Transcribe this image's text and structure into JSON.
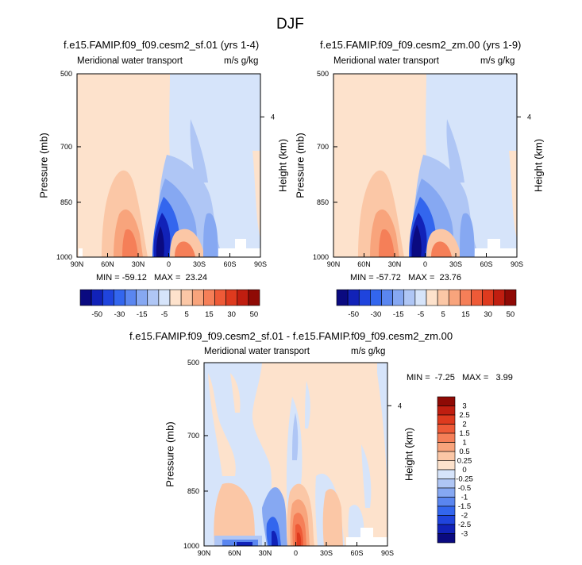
{
  "suptitle": "DJF",
  "panels": [
    {
      "title": "f.e15.FAMIP.f09_f09.cesm2_sf.01 (yrs 1-4)",
      "left_label": "Meridional water transport",
      "right_label": "m/s g/kg",
      "ylabel": "Pressure (mb)",
      "ylabel2": "Height (km)",
      "yticks": [
        "500",
        "700",
        "850",
        "1000"
      ],
      "height_tick": "4",
      "xticks": [
        "90N",
        "60N",
        "30N",
        "0",
        "30S",
        "60S",
        "90S"
      ],
      "stats": "MIN = -59.12   MAX =  23.24"
    },
    {
      "title": "f.e15.FAMIP.f09_f09.cesm2_zm.00 (yrs 1-9)",
      "left_label": "Meridional water transport",
      "right_label": "m/s g/kg",
      "ylabel": "Pressure (mb)",
      "ylabel2": "Height (km)",
      "yticks": [
        "500",
        "700",
        "850",
        "1000"
      ],
      "height_tick": "4",
      "xticks": [
        "90N",
        "60N",
        "30N",
        "0",
        "30S",
        "60S",
        "90S"
      ],
      "stats": "MIN = -57.72   MAX =  23.76"
    },
    {
      "title": "f.e15.FAMIP.f09_f09.cesm2_sf.01 - f.e15.FAMIP.f09_f09.cesm2_zm.00",
      "left_label": "Meridional water transport",
      "right_label": "m/s g/kg",
      "ylabel": "Pressure (mb)",
      "ylabel2": "Height (km)",
      "yticks": [
        "500",
        "700",
        "850",
        "1000"
      ],
      "height_tick": "4",
      "xticks": [
        "90N",
        "60N",
        "30N",
        "0",
        "30S",
        "60S",
        "90S"
      ],
      "stats": "MIN =  -7.25   MAX =   3.99"
    }
  ],
  "colorbar_top": {
    "labels": [
      "-50",
      "-30",
      "-15",
      "-5",
      "5",
      "15",
      "30",
      "50"
    ],
    "colors": [
      "#0a0a80",
      "#1122b8",
      "#1f44dd",
      "#3366ee",
      "#5a86f0",
      "#86a8f2",
      "#afc6f5",
      "#d6e4fa",
      "#fde2cc",
      "#fbc7a6",
      "#f8a47c",
      "#f57f58",
      "#ee5a37",
      "#de3a1e",
      "#c01e10",
      "#8f0a05"
    ]
  },
  "colorbar_diff": {
    "labels": [
      "3",
      "2.5",
      "2",
      "1.5",
      "1",
      "0.5",
      "0.25",
      "0",
      "-0.25",
      "-0.5",
      "-1",
      "-1.5",
      "-2",
      "-2.5",
      "-3"
    ],
    "colors": [
      "#8f0a05",
      "#c01e10",
      "#de3a1e",
      "#ee5a37",
      "#f57f58",
      "#f8a47c",
      "#fbc7a6",
      "#fde2cc",
      "#d6e4fa",
      "#afc6f5",
      "#86a8f2",
      "#5a86f0",
      "#3366ee",
      "#1f44dd",
      "#1122b8",
      "#0a0a80"
    ]
  },
  "chart_data": [
    {
      "type": "heatmap",
      "title": "f.e15.FAMIP.f09_f09.cesm2_sf.01 (yrs 1-4)",
      "xlabel": "",
      "ylabel": "Pressure (mb)",
      "x_range": [
        "90N",
        "90S"
      ],
      "y_range": [
        500,
        1000
      ],
      "variable": "Meridional water transport",
      "units": "m/s g/kg",
      "min": -59.12,
      "max": 23.24,
      "contour_levels": [
        -50,
        -40,
        -30,
        -20,
        -15,
        -10,
        -5,
        0,
        5,
        10,
        15,
        20,
        30,
        40,
        50
      ]
    },
    {
      "type": "heatmap",
      "title": "f.e15.FAMIP.f09_f09.cesm2_zm.00 (yrs 1-9)",
      "xlabel": "",
      "ylabel": "Pressure (mb)",
      "x_range": [
        "90N",
        "90S"
      ],
      "y_range": [
        500,
        1000
      ],
      "variable": "Meridional water transport",
      "units": "m/s g/kg",
      "min": -57.72,
      "max": 23.76,
      "contour_levels": [
        -50,
        -40,
        -30,
        -20,
        -15,
        -10,
        -5,
        0,
        5,
        10,
        15,
        20,
        30,
        40,
        50
      ]
    },
    {
      "type": "heatmap",
      "title": "f.e15.FAMIP.f09_f09.cesm2_sf.01 - f.e15.FAMIP.f09_f09.cesm2_zm.00",
      "xlabel": "",
      "ylabel": "Pressure (mb)",
      "x_range": [
        "90N",
        "90S"
      ],
      "y_range": [
        500,
        1000
      ],
      "variable": "Meridional water transport",
      "units": "m/s g/kg",
      "min": -7.25,
      "max": 3.99,
      "contour_levels": [
        -3,
        -2.5,
        -2,
        -1.5,
        -1,
        -0.5,
        -0.25,
        0,
        0.25,
        0.5,
        1,
        1.5,
        2,
        2.5,
        3
      ]
    }
  ]
}
